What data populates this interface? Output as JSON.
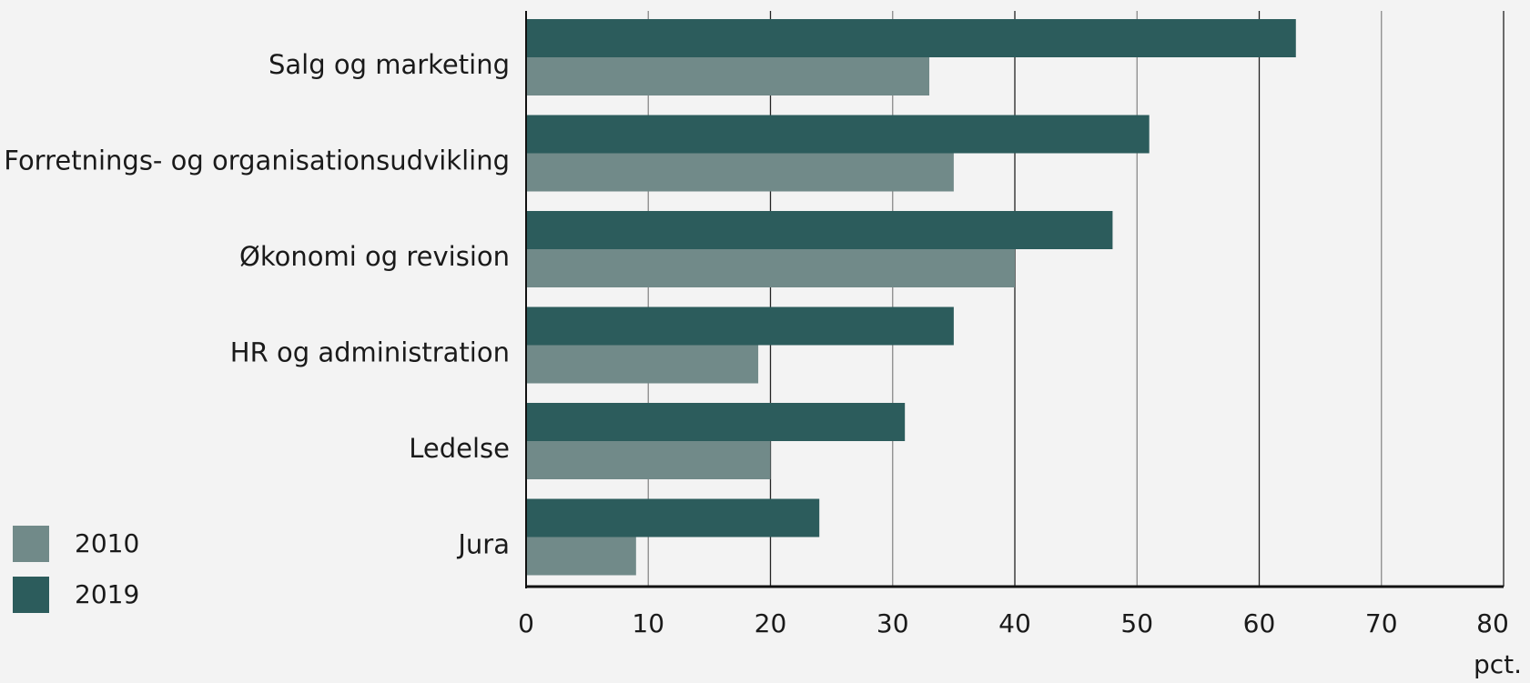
{
  "chart_data": {
    "type": "bar",
    "orientation": "horizontal",
    "categories": [
      "Salg og marketing",
      "Forretnings- og organisationsudvikling",
      "Økonomi og revision",
      "HR og administration",
      "Ledelse",
      "Jura"
    ],
    "series": [
      {
        "name": "2019",
        "color": "#2c5c5c",
        "values": [
          63,
          51,
          48,
          35,
          31,
          24
        ]
      },
      {
        "name": "2010",
        "color": "#718a89",
        "values": [
          33,
          35,
          40,
          19,
          20,
          9
        ]
      }
    ],
    "legend": {
      "placement": "bottom-left",
      "order": [
        "2010",
        "2019"
      ]
    },
    "xaxis": {
      "range": [
        0,
        80
      ],
      "ticks": [
        0,
        10,
        20,
        30,
        40,
        50,
        60,
        70,
        80
      ],
      "unit_label": "pct."
    },
    "grid": true,
    "title": "",
    "xlabel": "",
    "ylabel": ""
  }
}
